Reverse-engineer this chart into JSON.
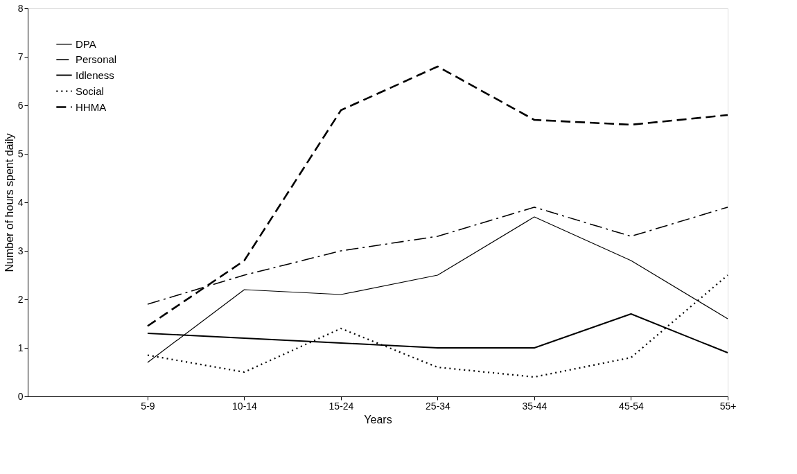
{
  "chart_data": {
    "type": "line",
    "xlabel": "Years",
    "ylabel": "Number of hours spent daily",
    "categories": [
      "5-9",
      "10-14",
      "15-24",
      "25-34",
      "35-44",
      "45-54",
      "55+"
    ],
    "ylim": [
      0,
      8
    ],
    "yticks": [
      0,
      1,
      2,
      3,
      4,
      5,
      6,
      7,
      8
    ],
    "grid": false,
    "legend": "top left",
    "marker": "none",
    "series": [
      {
        "name": "DPA",
        "color": "#000000",
        "line_style": "solid",
        "values": [
          0.7,
          2.2,
          2.1,
          2.5,
          3.7,
          2.8,
          1.6
        ]
      },
      {
        "name": "Personal",
        "color": "#000000",
        "line_style": "dashdot",
        "values": [
          1.9,
          2.5,
          3.0,
          3.3,
          3.9,
          3.3,
          3.9
        ]
      },
      {
        "name": "Idleness",
        "color": "#000000",
        "line_style": "solid",
        "values": [
          1.3,
          1.2,
          1.1,
          1.0,
          1.0,
          1.7,
          0.9
        ]
      },
      {
        "name": "Social",
        "color": "#000000",
        "line_style": "dotted",
        "values": [
          0.85,
          0.5,
          1.4,
          0.6,
          0.4,
          0.8,
          2.5
        ]
      },
      {
        "name": "HHMA",
        "color": "#000000",
        "line_style": "dashed",
        "values": [
          1.45,
          2.8,
          5.9,
          6.8,
          5.7,
          5.6,
          5.8
        ]
      }
    ]
  }
}
